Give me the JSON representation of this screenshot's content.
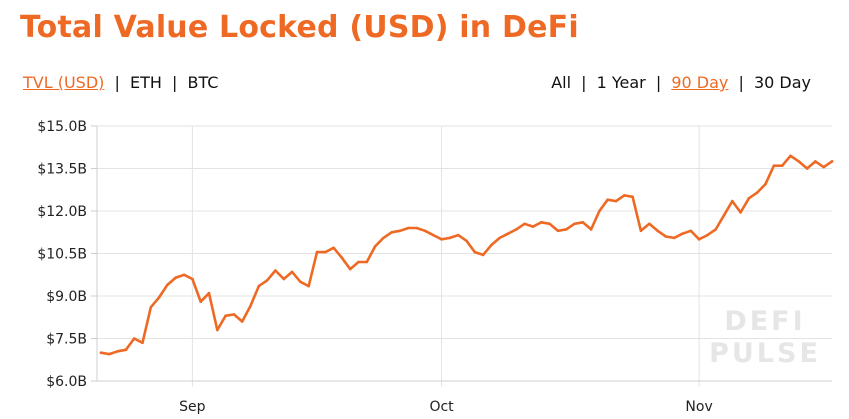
{
  "header": {
    "title": "Total Value Locked (USD) in DeFi"
  },
  "unit_toggles": [
    {
      "label": "TVL (USD)",
      "active": true
    },
    {
      "label": "ETH",
      "active": false
    },
    {
      "label": "BTC",
      "active": false
    }
  ],
  "range_toggles": [
    {
      "label": "All",
      "active": false
    },
    {
      "label": "1 Year",
      "active": false
    },
    {
      "label": "90 Day",
      "active": true
    },
    {
      "label": "30 Day",
      "active": false
    }
  ],
  "separator": "|",
  "watermark": {
    "line1": "DEFI",
    "line2": "PULSE"
  },
  "colors": {
    "accent": "#ee6a24",
    "line": "#ee6a24",
    "grid": "#e3e3e3",
    "axis": "#cfcfcf",
    "text": "#222222"
  },
  "chart_data": {
    "type": "line",
    "series_name": "",
    "ylim": [
      6.0,
      15.0
    ],
    "y_ticks": [
      {
        "value": 6.0,
        "label": "$6.0B"
      },
      {
        "value": 7.5,
        "label": "$7.5B"
      },
      {
        "value": 9.0,
        "label": "$9.0B"
      },
      {
        "value": 10.5,
        "label": "$10.5B"
      },
      {
        "value": 12.0,
        "label": "$12.0B"
      },
      {
        "value": 13.5,
        "label": "$13.5B"
      },
      {
        "value": 15.0,
        "label": "$15.0B"
      }
    ],
    "x_ticks": [
      {
        "label": "Sep",
        "index": 11
      },
      {
        "label": "Oct",
        "index": 41
      },
      {
        "label": "Nov",
        "index": 72
      }
    ],
    "grid": true,
    "values": [
      7.0,
      6.95,
      7.05,
      7.1,
      7.5,
      7.35,
      8.6,
      8.95,
      9.4,
      9.65,
      9.75,
      9.6,
      8.8,
      9.1,
      7.8,
      8.3,
      8.35,
      8.1,
      8.65,
      9.35,
      9.55,
      9.9,
      9.6,
      9.85,
      9.5,
      9.35,
      10.55,
      10.55,
      10.7,
      10.35,
      9.95,
      10.2,
      10.2,
      10.75,
      11.05,
      11.25,
      11.3,
      11.4,
      11.4,
      11.3,
      11.15,
      11.0,
      11.05,
      11.15,
      10.95,
      10.55,
      10.45,
      10.8,
      11.05,
      11.2,
      11.35,
      11.55,
      11.45,
      11.6,
      11.55,
      11.3,
      11.35,
      11.55,
      11.6,
      11.35,
      12.0,
      12.4,
      12.35,
      12.55,
      12.5,
      11.3,
      11.55,
      11.3,
      11.1,
      11.05,
      11.2,
      11.3,
      11.0,
      11.15,
      11.35,
      11.85,
      12.35,
      11.95,
      12.45,
      12.65,
      12.95,
      13.6,
      13.6,
      13.95,
      13.75,
      13.5,
      13.75,
      13.55,
      13.75
    ]
  }
}
